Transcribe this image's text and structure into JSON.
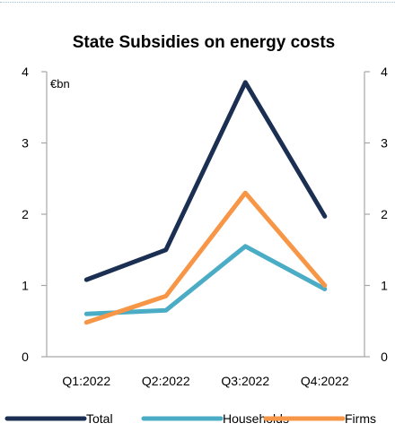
{
  "chart_data": {
    "type": "line",
    "title": "State Subsidies on energy costs",
    "unit_label": "€bn",
    "categories": [
      "Q1:2022",
      "Q2:2022",
      "Q3:2022",
      "Q4:2022"
    ],
    "ylim": [
      0,
      4
    ],
    "yticks": [
      "0",
      "1",
      "2",
      "3",
      "4"
    ],
    "secondary_axis": true,
    "grid": false,
    "legend_position": "bottom",
    "series": [
      {
        "name": "Total",
        "values": [
          1.08,
          1.5,
          3.85,
          1.97
        ],
        "color": "#1b2f52"
      },
      {
        "name": "Households",
        "values": [
          0.6,
          0.65,
          1.55,
          0.95
        ],
        "color": "#4bacc6"
      },
      {
        "name": "Firms",
        "values": [
          0.48,
          0.85,
          2.3,
          1.0
        ],
        "color": "#f79646"
      }
    ]
  }
}
